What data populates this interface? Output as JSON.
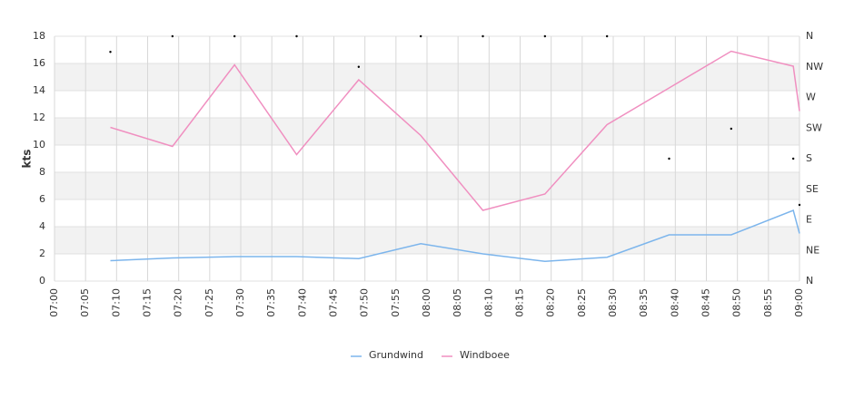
{
  "chart_data": {
    "type": "line",
    "y_label": "kts",
    "x": [
      "07:09",
      "07:19",
      "07:29",
      "07:39",
      "07:49",
      "07:59",
      "08:09",
      "08:19",
      "08:29",
      "08:39",
      "08:49",
      "08:59",
      "09:00"
    ],
    "xlim": [
      "07:00",
      "09:00"
    ],
    "xticks": [
      "07:00",
      "07:05",
      "07:10",
      "07:15",
      "07:20",
      "07:25",
      "07:30",
      "07:35",
      "07:40",
      "07:45",
      "07:50",
      "07:55",
      "08:00",
      "08:05",
      "08:10",
      "08:15",
      "08:20",
      "08:25",
      "08:30",
      "08:35",
      "08:40",
      "08:45",
      "08:50",
      "08:55",
      "09:00"
    ],
    "ylim": [
      0,
      18
    ],
    "yticks": [
      0,
      2,
      4,
      6,
      8,
      10,
      12,
      14,
      16,
      18
    ],
    "y2lim": [
      0,
      360
    ],
    "y2ticks": [
      {
        "value": 0,
        "label": "N"
      },
      {
        "value": 45,
        "label": "NE"
      },
      {
        "value": 90,
        "label": "E"
      },
      {
        "value": 135,
        "label": "SE"
      },
      {
        "value": 180,
        "label": "S"
      },
      {
        "value": 225,
        "label": "SW"
      },
      {
        "value": 270,
        "label": "W"
      },
      {
        "value": 315,
        "label": "NW"
      },
      {
        "value": 360,
        "label": "N"
      }
    ],
    "grid": true,
    "bands": true,
    "legend": "bottom",
    "series": [
      {
        "name": "Grundwind",
        "color": "#7cb5ec",
        "values": [
          1.5,
          1.7,
          1.8,
          1.8,
          1.65,
          2.75,
          2.0,
          1.45,
          1.75,
          3.4,
          3.4,
          5.2,
          3.5
        ]
      },
      {
        "name": "Windboee",
        "color": "#f08fc0",
        "values": [
          11.3,
          9.9,
          15.9,
          9.3,
          14.8,
          10.7,
          5.2,
          6.4,
          11.5,
          14.2,
          16.9,
          15.8,
          12.5
        ]
      }
    ],
    "directions": {
      "axis": "y2",
      "color": "#000000",
      "values": [
        337,
        360,
        360,
        360,
        315,
        360,
        360,
        360,
        360,
        180,
        224,
        180,
        112
      ]
    }
  }
}
